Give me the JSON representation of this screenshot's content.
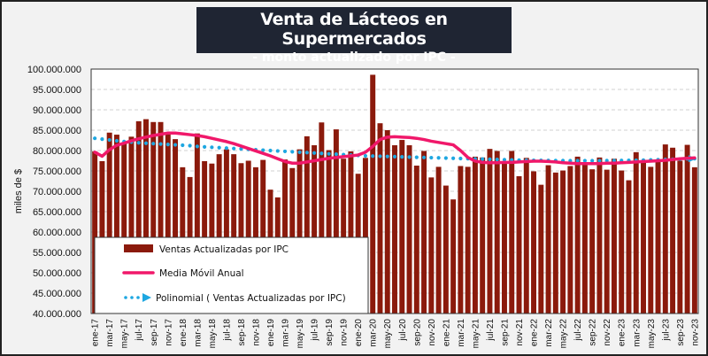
{
  "chart_data": {
    "type": "bar",
    "title": "Venta de Lácteos en Supermercados",
    "subtitle": "- monto actualizado por IPC -",
    "xlabel": "",
    "ylabel": "miles de $",
    "ylim": [
      40000000,
      100000000
    ],
    "yticks": [
      40000000,
      45000000,
      50000000,
      55000000,
      60000000,
      65000000,
      70000000,
      75000000,
      80000000,
      85000000,
      90000000,
      95000000,
      100000000
    ],
    "ytick_labels": [
      "40.000.000",
      "45.000.000",
      "50.000.000",
      "55.000.000",
      "60.000.000",
      "65.000.000",
      "70.000.000",
      "75.000.000",
      "80.000.000",
      "85.000.000",
      "90.000.000",
      "95.000.000",
      "100.000.000"
    ],
    "grid": "horizontal-dashed",
    "legend_position": "bottom-left",
    "categories": [
      "ene-17",
      "feb-17",
      "mar-17",
      "abr-17",
      "may-17",
      "jun-17",
      "jul-17",
      "ago-17",
      "sep-17",
      "oct-17",
      "nov-17",
      "dic-17",
      "ene-18",
      "feb-18",
      "mar-18",
      "abr-18",
      "may-18",
      "jun-18",
      "jul-18",
      "ago-18",
      "sep-18",
      "oct-18",
      "nov-18",
      "dic-18",
      "ene-19",
      "feb-19",
      "mar-19",
      "abr-19",
      "may-19",
      "jun-19",
      "jul-19",
      "ago-19",
      "sep-19",
      "oct-19",
      "nov-19",
      "dic-19",
      "ene-20",
      "feb-20",
      "mar-20",
      "abr-20",
      "may-20",
      "jun-20",
      "jul-20",
      "ago-20",
      "sep-20",
      "oct-20",
      "nov-20",
      "dic-20",
      "ene-21",
      "feb-21",
      "mar-21",
      "abr-21",
      "may-21",
      "jun-21",
      "jul-21",
      "ago-21",
      "sep-21",
      "oct-21",
      "nov-21",
      "dic-21",
      "ene-22",
      "feb-22",
      "mar-22",
      "abr-22",
      "may-22",
      "jun-22",
      "jul-22",
      "ago-22",
      "sep-22",
      "oct-22",
      "nov-22",
      "dic-22",
      "ene-23",
      "feb-23",
      "mar-23",
      "abr-23",
      "may-23",
      "jun-23",
      "jul-23",
      "ago-23",
      "sep-23",
      "oct-23",
      "nov-23"
    ],
    "xtick_labels": [
      "ene-17",
      "mar-17",
      "may-17",
      "jul-17",
      "sep-17",
      "nov-17",
      "ene-18",
      "mar-18",
      "may-18",
      "jul-18",
      "sep-18",
      "nov-18",
      "ene-19",
      "mar-19",
      "may-19",
      "jul-19",
      "sep-19",
      "nov-19",
      "ene-20",
      "mar-20",
      "may-20",
      "jul-20",
      "sep-20",
      "nov-20",
      "ene-21",
      "mar-21",
      "may-21",
      "jul-21",
      "sep-21",
      "nov-21",
      "ene-22",
      "mar-22",
      "may-22",
      "jul-22",
      "sep-22",
      "nov-22",
      "ene-23",
      "mar-23",
      "may-23",
      "jul-23",
      "sep-23",
      "nov-23"
    ],
    "series": [
      {
        "name": "Ventas Actualizadas por IPC",
        "type": "bar",
        "color": "#8b1a0c",
        "values": [
          79800000,
          77400000,
          84400000,
          83900000,
          82000000,
          83400000,
          87200000,
          87700000,
          87000000,
          87000000,
          84400000,
          82800000,
          75900000,
          73500000,
          84200000,
          77400000,
          76800000,
          79100000,
          80300000,
          79100000,
          76900000,
          77500000,
          75900000,
          77700000,
          70400000,
          68500000,
          77800000,
          75700000,
          80300000,
          83500000,
          81300000,
          86900000,
          80100000,
          85200000,
          78000000,
          79800000,
          74300000,
          78200000,
          98600000,
          86700000,
          85000000,
          81300000,
          82600000,
          81300000,
          76300000,
          79900000,
          73400000,
          76000000,
          71400000,
          68000000,
          76200000,
          76000000,
          78500000,
          78300000,
          80400000,
          79900000,
          77000000,
          79900000,
          73700000,
          78200000,
          74900000,
          71600000,
          76400000,
          74600000,
          75100000,
          76200000,
          78500000,
          77100000,
          75400000,
          78300000,
          75300000,
          78000000,
          75100000,
          72700000,
          79600000,
          77300000,
          76000000,
          77700000,
          81500000,
          80700000,
          77500000,
          81400000,
          75900000
        ]
      },
      {
        "name": "Media Móvil Anual",
        "type": "line",
        "color": "#f0186a",
        "values": [
          79600000,
          78600000,
          80200000,
          81300000,
          81800000,
          82400000,
          82900000,
          83300000,
          83700000,
          84000000,
          84300000,
          84300000,
          84100000,
          83900000,
          83700000,
          83400000,
          83000000,
          82600000,
          82200000,
          81700000,
          81100000,
          80500000,
          79900000,
          79300000,
          78700000,
          78000000,
          77300000,
          76900000,
          76900000,
          77200000,
          77500000,
          77800000,
          78100000,
          78300000,
          78500000,
          78700000,
          78900000,
          79600000,
          81000000,
          82700000,
          83300000,
          83400000,
          83300000,
          83200000,
          83000000,
          82700000,
          82300000,
          82000000,
          81700000,
          81400000,
          80000000,
          78300000,
          77400000,
          77100000,
          77000000,
          77000000,
          77100000,
          77100000,
          77200000,
          77300000,
          77400000,
          77400000,
          77300000,
          77200000,
          77000000,
          76900000,
          76800000,
          76800000,
          76800000,
          76800000,
          76900000,
          76900000,
          77000000,
          77100000,
          77200000,
          77300000,
          77400000,
          77500000,
          77600000,
          77800000,
          78000000,
          78100000,
          78200000
        ]
      },
      {
        "name": "Polinomial ( Ventas Actualizadas por IPC)",
        "type": "trendline",
        "color": "#1ea7e1",
        "values_start_end": "polynomial",
        "values": [
          83000000,
          82800000,
          82600000,
          82400000,
          82200000,
          82100000,
          81900000,
          81800000,
          81700000,
          81600000,
          81500000,
          81400000,
          81300000,
          81200000,
          81000000,
          80900000,
          80800000,
          80700000,
          80600000,
          80500000,
          80400000,
          80300000,
          80200000,
          80100000,
          80000000,
          79900000,
          79800000,
          79700000,
          79600000,
          79500000,
          79400000,
          79300000,
          79200000,
          79100000,
          79000000,
          78900000,
          78800000,
          78700000,
          78650000,
          78600000,
          78550000,
          78500000,
          78450000,
          78400000,
          78350000,
          78300000,
          78250000,
          78200000,
          78150000,
          78100000,
          78050000,
          78000000,
          77950000,
          77900000,
          77850000,
          77800000,
          77750000,
          77700000,
          77650000,
          77620000,
          77600000,
          77580000,
          77560000,
          77540000,
          77520000,
          77500000,
          77500000,
          77500000,
          77500000,
          77500000,
          77520000,
          77540000,
          77560000,
          77580000,
          77600000,
          77650000,
          77700000,
          77750000,
          77800000,
          77850000,
          77900000,
          77950000,
          78000000
        ]
      }
    ]
  }
}
